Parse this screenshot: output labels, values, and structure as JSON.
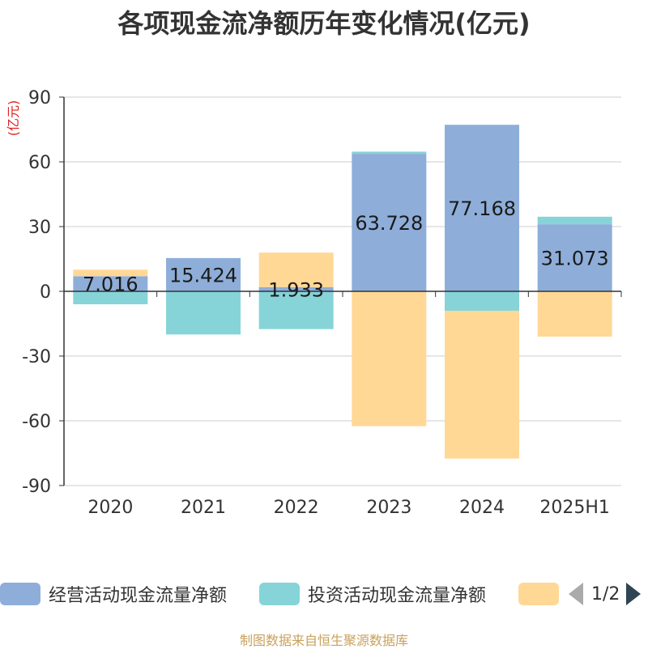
{
  "chart_data": {
    "type": "bar",
    "stacked": true,
    "title": "各项现金流净额历年变化情况(亿元)",
    "ylabel": "(亿元)",
    "categories": [
      "2020",
      "2021",
      "2022",
      "2023",
      "2024",
      "2025H1"
    ],
    "ylim": [
      -90,
      90
    ],
    "yticks": [
      90,
      60,
      30,
      0,
      -30,
      -60,
      -90
    ],
    "grid": true,
    "series": [
      {
        "name": "经营活动现金流量净额",
        "color": "#8eaed9",
        "values": [
          7.016,
          15.424,
          1.933,
          63.728,
          77.168,
          31.073
        ],
        "labels": [
          "7.016",
          "15.424",
          "1.933",
          "63.728",
          "77.168",
          "31.073"
        ]
      },
      {
        "name": "投资活动现金流量净额",
        "color": "#86d4d8",
        "values": [
          -6,
          -20,
          -17.5,
          1,
          -9,
          3.5
        ]
      },
      {
        "name": "",
        "color": "#ffd896",
        "values": [
          3,
          0,
          16,
          -62.5,
          -68.5,
          -21
        ]
      }
    ]
  },
  "legend": {
    "items": [
      "经营活动现金流量净额",
      "投资活动现金流量净额",
      ""
    ],
    "page": "1/2"
  },
  "source": "制图数据来自恒生聚源数据库"
}
